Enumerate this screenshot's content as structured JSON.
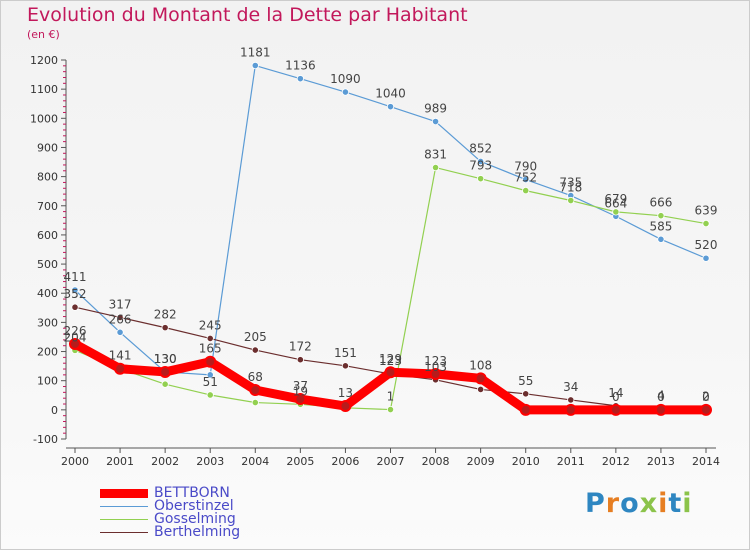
{
  "chart_data": {
    "type": "line",
    "title": "Evolution du Montant de la Dette par Habitant",
    "unit_label": "(en €)",
    "x": [
      "2000",
      "2001",
      "2002",
      "2003",
      "2004",
      "2005",
      "2006",
      "2007",
      "2008",
      "2009",
      "2010",
      "2011",
      "2012",
      "2013",
      "2014"
    ],
    "ylim": [
      -100,
      1200
    ],
    "yticks": [
      -100,
      0,
      100,
      200,
      300,
      400,
      500,
      600,
      700,
      800,
      900,
      1000,
      1100,
      1200
    ],
    "grid": false,
    "legend_position": "bottom-left",
    "series": [
      {
        "name": "BETTBORN",
        "color": "#ff0000",
        "values": [
          226,
          141,
          130,
          165,
          68,
          37,
          13,
          129,
          123,
          108,
          0,
          0,
          0,
          0,
          0
        ],
        "labels": [
          "226",
          "141",
          "130",
          "165",
          "68",
          "37",
          "13",
          "129",
          "123",
          "108",
          "",
          "",
          "0",
          "0",
          "0"
        ]
      },
      {
        "name": "Oberstinzel",
        "color": "#5b9bd5",
        "values": [
          411,
          266,
          130,
          120,
          1181,
          1136,
          1090,
          1040,
          989,
          852,
          790,
          735,
          664,
          585,
          520
        ],
        "labels": [
          "411",
          "266",
          "130",
          "",
          "1181",
          "1136",
          "1090",
          "1040",
          "989",
          "852",
          "790",
          "735",
          "664",
          "585",
          "520"
        ]
      },
      {
        "name": "Gosselming",
        "color": "#92d050",
        "values": [
          204,
          141,
          88,
          51,
          25,
          19,
          7,
          1,
          831,
          793,
          752,
          718,
          679,
          666,
          639
        ],
        "labels": [
          "204",
          "",
          "",
          "51",
          "",
          "19",
          "",
          "1",
          "831",
          "793",
          "752",
          "718",
          "679",
          "666",
          "639"
        ]
      },
      {
        "name": "Berthelming",
        "color": "#6b2e2e",
        "values": [
          352,
          317,
          282,
          245,
          205,
          172,
          151,
          123,
          103,
          70,
          55,
          34,
          14,
          4,
          2
        ],
        "labels": [
          "352",
          "317",
          "282",
          "245",
          "205",
          "172",
          "151",
          "123",
          "103",
          "",
          "55",
          "34",
          "14",
          "4",
          "2"
        ]
      }
    ]
  },
  "logo": {
    "text": "Proxiti",
    "colors": [
      "#2e86c1",
      "#e67e22",
      "#2e86c1",
      "#8bc34a",
      "#e67e22",
      "#2e86c1",
      "#8bc34a"
    ]
  }
}
